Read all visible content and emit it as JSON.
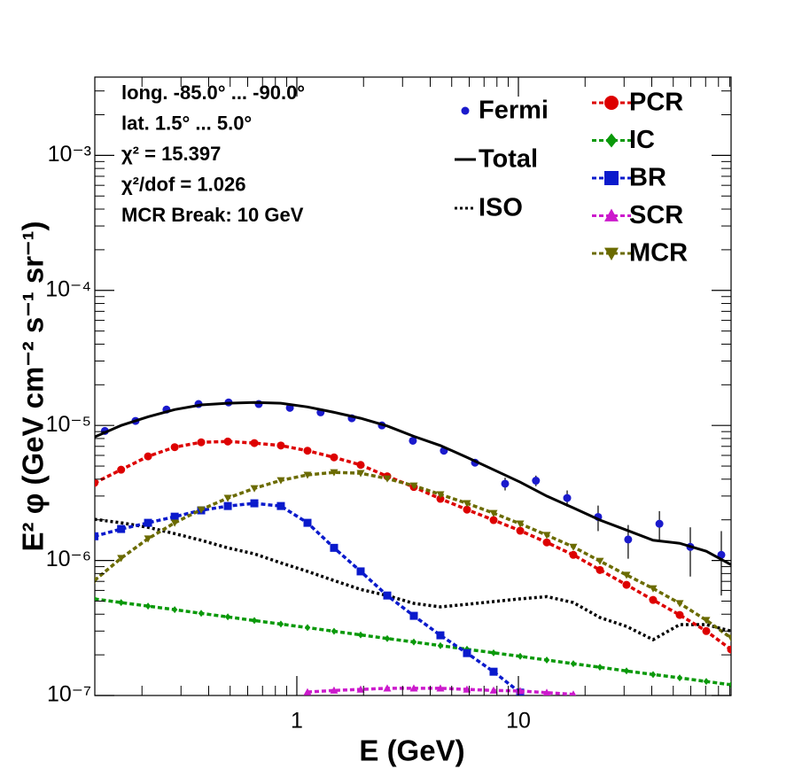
{
  "chart_data": {
    "type": "line",
    "xlabel": "E (GeV)",
    "ylabel": "E² φ (GeV cm⁻² s⁻¹ sr⁻¹)",
    "annotations": [
      "long. -85.0° ... -90.0°",
      "lat. 1.5° ... 5.0°",
      "χ² = 15.397",
      "χ²/dof = 1.026",
      "MCR Break: 10 GeV"
    ],
    "xscale": "log",
    "yscale": "log",
    "xlim": [
      0.1225,
      91.2
    ],
    "ylim": [
      1e-07,
      0.0038
    ],
    "xticks": [
      1,
      10
    ],
    "xminorticks": [
      0.2,
      0.3,
      0.4,
      0.5,
      0.6,
      0.7,
      0.8,
      0.9,
      2,
      3,
      4,
      5,
      6,
      7,
      8,
      9,
      20,
      30,
      40,
      50,
      60,
      70,
      80,
      90
    ],
    "yticks": [
      {
        "value": 1e-07,
        "label": "10⁻⁷"
      },
      {
        "value": 1e-06,
        "label": "10⁻⁶"
      },
      {
        "value": 1e-05,
        "label": "10⁻⁵"
      },
      {
        "value": 0.0001,
        "label": "10⁻⁴"
      },
      {
        "value": 0.001,
        "label": "10⁻³"
      }
    ],
    "yminorticks": [
      2e-07,
      3e-07,
      4e-07,
      5e-07,
      6e-07,
      7e-07,
      8e-07,
      9e-07,
      2e-06,
      3e-06,
      4e-06,
      5e-06,
      6e-06,
      7e-06,
      8e-06,
      9e-06,
      2e-05,
      3e-05,
      4e-05,
      5e-05,
      6e-05,
      7e-05,
      8e-05,
      9e-05,
      0.0002,
      0.0003,
      0.0004,
      0.0005,
      0.0006,
      0.0007,
      0.0008,
      0.0009,
      0.002,
      0.003
    ],
    "series": [
      {
        "name": "Fermi",
        "color": "#1a1acc",
        "marker": "circle",
        "line": "none",
        "x": [
          0.136,
          0.187,
          0.258,
          0.36,
          0.492,
          0.673,
          0.93,
          1.28,
          1.77,
          2.42,
          3.34,
          4.61,
          6.37,
          8.71,
          12.0,
          16.6,
          22.9,
          31.3,
          43.3,
          59.7,
          82.4
        ],
        "values": [
          9.1e-06,
          1.08e-05,
          1.31e-05,
          1.44e-05,
          1.48e-05,
          1.44e-05,
          1.35e-05,
          1.25e-05,
          1.13e-05,
          1e-05,
          7.7e-06,
          6.5e-06,
          5.3e-06,
          3.7e-06,
          3.9e-06,
          2.9e-06,
          2.1e-06,
          1.43e-06,
          1.87e-06,
          1.26e-06,
          1.1e-06
        ],
        "errors": [
          2e-07,
          2e-07,
          2e-07,
          2e-07,
          2e-07,
          2e-07,
          2e-07,
          2e-07,
          2e-07,
          2e-07,
          1.5e-07,
          1.5e-07,
          2e-07,
          4e-07,
          3.5e-07,
          4e-07,
          4.5e-07,
          4e-07,
          4.5e-07,
          5e-07,
          5.5e-07
        ]
      },
      {
        "name": "Total",
        "color": "#000000",
        "marker": "none",
        "line": "solid",
        "x": [
          0.122,
          0.161,
          0.213,
          0.281,
          0.37,
          0.488,
          0.643,
          0.847,
          1.117,
          1.472,
          1.941,
          2.559,
          3.373,
          4.446,
          5.861,
          7.727,
          10.19,
          13.43,
          17.7,
          23.33,
          30.76,
          40.55,
          53.46,
          70.47,
          91.2
        ],
        "values": [
          8.2e-06,
          1e-05,
          1.16e-05,
          1.31e-05,
          1.42e-05,
          1.46e-05,
          1.48e-05,
          1.46e-05,
          1.37e-05,
          1.25e-05,
          1.13e-05,
          9.9e-06,
          8.3e-06,
          7.1e-06,
          5.8e-06,
          4.7e-06,
          3.8e-06,
          3e-06,
          2.45e-06,
          1.99e-06,
          1.68e-06,
          1.41e-06,
          1.34e-06,
          1.17e-06,
          9.3e-07
        ]
      },
      {
        "name": "ISO",
        "color": "#000000",
        "marker": "none",
        "line": "dotted",
        "x": [
          0.122,
          0.161,
          0.213,
          0.281,
          0.37,
          0.488,
          0.643,
          0.847,
          1.117,
          1.472,
          1.941,
          2.559,
          3.373,
          4.446,
          5.861,
          7.727,
          10.19,
          13.43,
          17.7,
          23.33,
          30.76,
          40.55,
          53.46,
          70.47,
          91.2
        ],
        "values": [
          2.02e-06,
          1.9e-06,
          1.76e-06,
          1.58e-06,
          1.41e-06,
          1.24e-06,
          1.12e-06,
          9.6e-07,
          8.3e-07,
          7.1e-07,
          6.1e-07,
          5.5e-07,
          4.81e-07,
          4.53e-07,
          4.73e-07,
          4.96e-07,
          5.2e-07,
          5.4e-07,
          4.88e-07,
          3.78e-07,
          3.25e-07,
          2.59e-07,
          3.35e-07,
          3.35e-07,
          3e-07
        ]
      },
      {
        "name": "PCR",
        "color": "#dd0000",
        "marker": "circle",
        "line": "dashed",
        "x": [
          0.122,
          0.161,
          0.213,
          0.281,
          0.37,
          0.488,
          0.643,
          0.847,
          1.117,
          1.472,
          1.941,
          2.559,
          3.373,
          4.446,
          5.861,
          7.727,
          10.19,
          13.43,
          17.7,
          23.33,
          30.76,
          40.55,
          53.46,
          70.47,
          91.2
        ],
        "values": [
          3.75e-06,
          4.7e-06,
          5.9e-06,
          6.9e-06,
          7.5e-06,
          7.6e-06,
          7.4e-06,
          7.1e-06,
          6.5e-06,
          5.8e-06,
          5.1e-06,
          4.2e-06,
          3.5e-06,
          2.86e-06,
          2.38e-06,
          1.99e-06,
          1.66e-06,
          1.36e-06,
          1.1e-06,
          8.5e-07,
          6.6e-07,
          5.1e-07,
          3.95e-07,
          3e-07,
          2.19e-07
        ]
      },
      {
        "name": "IC",
        "color": "#0a990a",
        "marker": "diamond",
        "line": "dashed",
        "x": [
          0.122,
          0.161,
          0.213,
          0.281,
          0.37,
          0.488,
          0.643,
          0.847,
          1.117,
          1.472,
          1.941,
          2.559,
          3.373,
          4.446,
          5.861,
          7.727,
          10.19,
          13.43,
          17.7,
          23.33,
          30.76,
          40.55,
          53.46,
          70.47,
          91.2
        ],
        "values": [
          5.19e-07,
          4.88e-07,
          4.59e-07,
          4.32e-07,
          4.06e-07,
          3.82e-07,
          3.59e-07,
          3.38e-07,
          3.18e-07,
          2.99e-07,
          2.81e-07,
          2.64e-07,
          2.49e-07,
          2.34e-07,
          2.2e-07,
          2.07e-07,
          1.95e-07,
          1.83e-07,
          1.72e-07,
          1.62e-07,
          1.52e-07,
          1.43e-07,
          1.35e-07,
          1.27e-07,
          1.2e-07
        ]
      },
      {
        "name": "BR",
        "color": "#0a1acc",
        "marker": "square",
        "line": "dashed",
        "x": [
          0.122,
          0.161,
          0.213,
          0.281,
          0.37,
          0.488,
          0.643,
          0.847,
          1.117,
          1.472,
          1.941,
          2.559,
          3.373,
          4.446,
          5.861,
          7.727,
          10.19
        ],
        "values": [
          1.51e-06,
          1.71e-06,
          1.9e-06,
          2.11e-06,
          2.35e-06,
          2.53e-06,
          2.65e-06,
          2.53e-06,
          1.9e-06,
          1.24e-06,
          8.3e-07,
          5.5e-07,
          3.89e-07,
          2.79e-07,
          2.06e-07,
          1.5e-07,
          1.05e-07
        ]
      },
      {
        "name": "SCR",
        "color": "#cc1acc",
        "marker": "triangle-up",
        "line": "dashed",
        "x": [
          1.117,
          1.472,
          1.941,
          2.559,
          3.373,
          4.446,
          5.861,
          7.727,
          10.19,
          13.43,
          17.7
        ],
        "values": [
          1.06e-07,
          1.09e-07,
          1.11e-07,
          1.13e-07,
          1.13e-07,
          1.13e-07,
          1.11e-07,
          1.09e-07,
          1.08e-07,
          1.05e-07,
          1.02e-07
        ]
      },
      {
        "name": "MCR",
        "color": "#6b6b00",
        "marker": "triangle-down",
        "line": "dashed",
        "x": [
          0.122,
          0.161,
          0.213,
          0.281,
          0.37,
          0.488,
          0.643,
          0.847,
          1.117,
          1.472,
          1.941,
          2.559,
          3.373,
          4.446,
          5.861,
          7.727,
          10.19,
          13.43,
          17.7,
          23.33,
          30.76,
          40.55,
          53.46,
          70.47,
          91.2
        ],
        "values": [
          7.1e-07,
          1.04e-06,
          1.45e-06,
          1.9e-06,
          2.38e-06,
          2.9e-06,
          3.42e-06,
          3.92e-06,
          4.3e-06,
          4.49e-06,
          4.43e-06,
          4.04e-06,
          3.58e-06,
          3.08e-06,
          2.65e-06,
          2.24e-06,
          1.87e-06,
          1.54e-06,
          1.26e-06,
          9.9e-07,
          7.8e-07,
          6.2e-07,
          4.81e-07,
          3.61e-07,
          2.67e-07
        ]
      }
    ]
  }
}
